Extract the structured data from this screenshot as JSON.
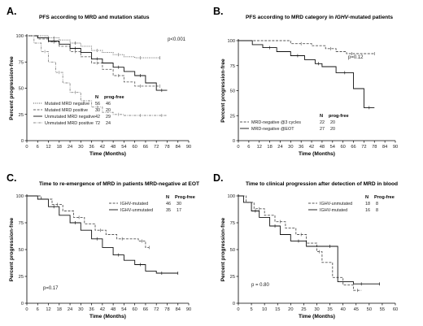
{
  "chart_data": [
    {
      "panel": "A.",
      "type": "line",
      "title": "PFS according to MRD and mutation status",
      "xlabel": "Time  (Months)",
      "ylabel": "Percent progression-free",
      "xlim": [
        0,
        90
      ],
      "ylim": [
        0,
        100
      ],
      "xticks": [
        0,
        6,
        12,
        18,
        24,
        30,
        36,
        42,
        48,
        54,
        60,
        66,
        72,
        78,
        84,
        90
      ],
      "yticks": [
        0,
        25,
        50,
        75,
        100
      ],
      "annotation": "p<0.001",
      "legend_placement": "bottom-left",
      "legend_headers": [
        "N",
        "prog-free"
      ],
      "series": [
        {
          "name": "Mutated MRD negative",
          "n": "56",
          "prog_free": "46",
          "style": "dotted",
          "color": "#555555",
          "x": [
            0,
            8,
            12,
            18,
            24,
            30,
            36,
            42,
            48,
            54,
            60,
            66,
            74
          ],
          "y": [
            100,
            100,
            98,
            96,
            93,
            90,
            86,
            84,
            82,
            80,
            79,
            79,
            79
          ]
        },
        {
          "name": "Mutated MRD positive",
          "n": "30",
          "prog_free": "20",
          "style": "dashed",
          "color": "#666666",
          "x": [
            0,
            6,
            12,
            18,
            24,
            30,
            36,
            42,
            48,
            54,
            60,
            66,
            74
          ],
          "y": [
            100,
            97,
            94,
            90,
            85,
            80,
            74,
            68,
            62,
            56,
            52,
            52,
            52
          ]
        },
        {
          "name": "Unmutated MRD negative",
          "n": "42",
          "prog_free": "29",
          "style": "solid",
          "color": "#111111",
          "x": [
            0,
            6,
            12,
            18,
            24,
            30,
            36,
            42,
            48,
            54,
            60,
            66,
            72,
            78
          ],
          "y": [
            100,
            98,
            95,
            92,
            88,
            84,
            78,
            74,
            70,
            66,
            62,
            55,
            48,
            48
          ]
        },
        {
          "name": "Unmutated MRD positive",
          "n": "72",
          "prog_free": "24",
          "style": "dash-dot",
          "color": "#888888",
          "x": [
            0,
            4,
            8,
            12,
            16,
            20,
            24,
            30,
            36,
            42,
            48,
            54,
            60,
            66,
            72,
            78
          ],
          "y": [
            100,
            93,
            85,
            75,
            65,
            55,
            46,
            38,
            32,
            27,
            25,
            24,
            24,
            24,
            24,
            24
          ]
        }
      ]
    },
    {
      "panel": "B.",
      "type": "line",
      "title": "PFS according to MRD category in IGHV-mutated patients",
      "title_parts": [
        "PFS according to MRD category in ",
        "IGHV",
        "-mutated patients"
      ],
      "xlabel": "Time  (Months)",
      "ylabel": "Percent progression-free",
      "xlim": [
        0,
        90
      ],
      "ylim": [
        0,
        100
      ],
      "xticks": [
        0,
        6,
        12,
        18,
        24,
        30,
        36,
        42,
        48,
        54,
        60,
        66,
        72,
        78,
        84,
        90
      ],
      "yticks": [
        0,
        25,
        50,
        75,
        100
      ],
      "annotation": "p=0.12",
      "legend_placement": "bottom-left",
      "legend_headers": [
        "N",
        "prog-free"
      ],
      "series": [
        {
          "name": "MRD-negative @3 cycles",
          "n": "22",
          "prog_free": "20",
          "style": "dashed",
          "color": "#555555",
          "x": [
            0,
            24,
            30,
            42,
            50,
            56,
            62,
            68,
            78
          ],
          "y": [
            100,
            100,
            97,
            95,
            92,
            89,
            87,
            87,
            87
          ]
        },
        {
          "name": "MRD-negative @EOT",
          "n": "27",
          "prog_free": "20",
          "style": "solid",
          "color": "#111111",
          "x": [
            0,
            8,
            14,
            22,
            30,
            38,
            44,
            48,
            56,
            66,
            72,
            78
          ],
          "y": [
            100,
            96,
            93,
            89,
            85,
            81,
            77,
            74,
            68,
            52,
            33,
            33
          ]
        }
      ]
    },
    {
      "panel": "C.",
      "type": "line",
      "title": "Time to re-emergence of MRD in patients MRD-negative at EOT",
      "xlabel": "Time  (Months)",
      "ylabel": "Percent progression-free",
      "xlim": [
        0,
        90
      ],
      "ylim": [
        0,
        100
      ],
      "xticks": [
        0,
        6,
        12,
        18,
        24,
        30,
        36,
        42,
        48,
        54,
        60,
        66,
        72,
        78,
        84,
        90
      ],
      "yticks": [
        0,
        25,
        50,
        75,
        100
      ],
      "annotation": "p=0.17",
      "legend_placement": "top-right",
      "legend_headers": [
        "N",
        "Prog-free"
      ],
      "series": [
        {
          "name": "IGHV-mutated",
          "n": "46",
          "prog_free": "30",
          "style": "dashed",
          "color": "#555555",
          "x": [
            0,
            8,
            14,
            20,
            26,
            32,
            38,
            44,
            50,
            56,
            62,
            66,
            68
          ],
          "y": [
            100,
            97,
            92,
            86,
            80,
            74,
            68,
            64,
            60,
            60,
            58,
            52,
            52
          ]
        },
        {
          "name": "IGHV-unmutated",
          "n": "35",
          "prog_free": "17",
          "style": "solid",
          "color": "#111111",
          "x": [
            0,
            6,
            12,
            18,
            24,
            30,
            36,
            42,
            48,
            54,
            60,
            66,
            72,
            78,
            84
          ],
          "y": [
            100,
            97,
            90,
            82,
            75,
            68,
            60,
            52,
            45,
            40,
            36,
            30,
            28,
            28,
            28
          ]
        }
      ]
    },
    {
      "panel": "D.",
      "type": "line",
      "title": "Time to clinical progression after detection of MRD in blood",
      "xlabel": "Time  (Months)",
      "ylabel": "Percent progression-free",
      "xlim": [
        0,
        60
      ],
      "ylim": [
        0,
        100
      ],
      "xticks": [
        0,
        5,
        10,
        15,
        20,
        25,
        30,
        35,
        40,
        45,
        50,
        55,
        60
      ],
      "yticks": [
        0,
        25,
        50,
        75,
        100
      ],
      "annotation": "p = 0.80",
      "legend_placement": "top-right",
      "legend_headers": [
        "N",
        "Prog-free"
      ],
      "series": [
        {
          "name": "IGHV-unmutated",
          "n": "18",
          "prog_free": "8",
          "style": "dashed",
          "color": "#555555",
          "x": [
            0,
            3,
            6,
            10,
            14,
            18,
            22,
            26,
            30,
            32,
            36,
            40,
            44,
            47
          ],
          "y": [
            100,
            94,
            88,
            82,
            76,
            70,
            64,
            56,
            48,
            38,
            24,
            17,
            12,
            12
          ]
        },
        {
          "name": "IGHV-mutated",
          "n": "16",
          "prog_free": "8",
          "style": "solid",
          "color": "#111111",
          "x": [
            0,
            2,
            5,
            8,
            12,
            16,
            20,
            26,
            32,
            38,
            44,
            50,
            54
          ],
          "y": [
            100,
            94,
            86,
            80,
            72,
            64,
            58,
            53,
            53,
            20,
            18,
            18,
            18
          ]
        }
      ]
    }
  ]
}
